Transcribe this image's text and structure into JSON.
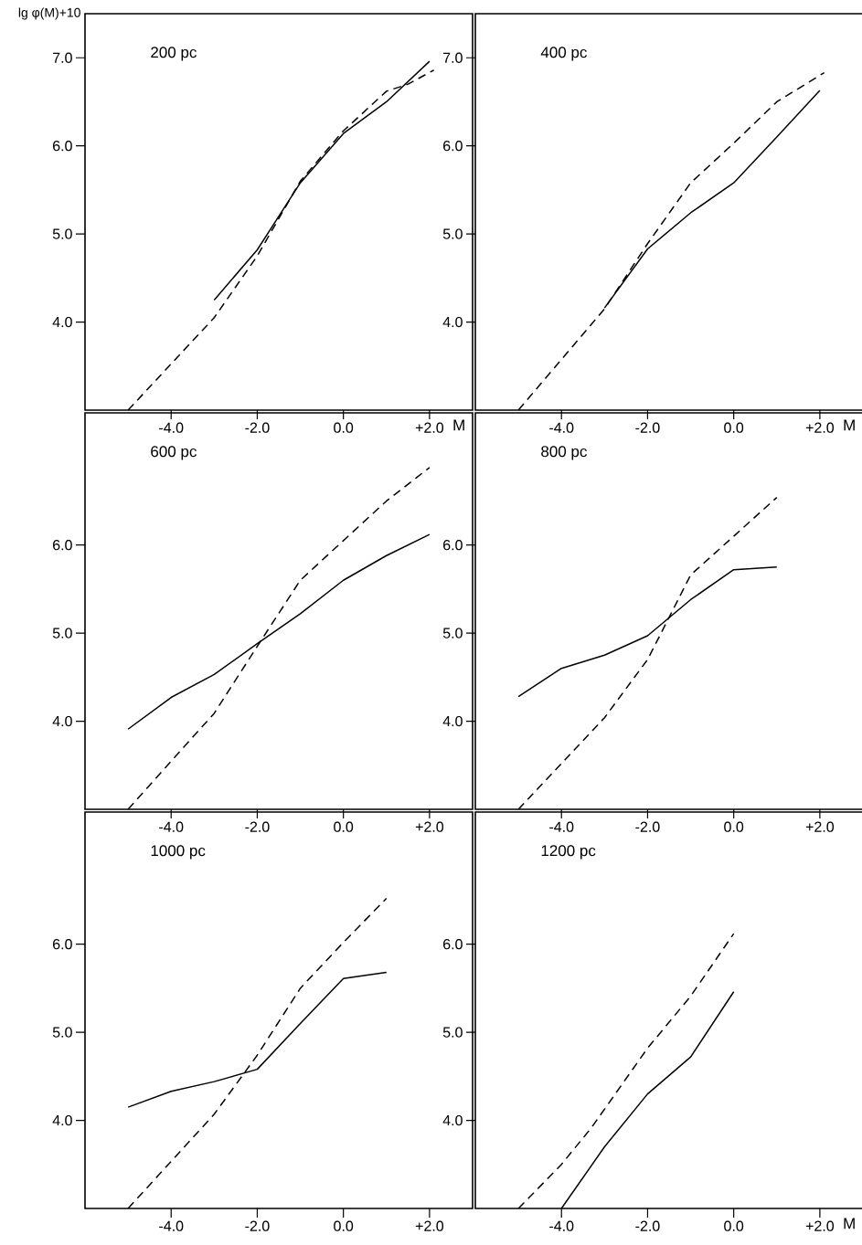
{
  "chart_data": [
    {
      "type": "line",
      "title": "200 pc",
      "xlabel": "M",
      "ylabel": "lg φ(M)+10",
      "xlim": [
        -6,
        3
      ],
      "ylim": [
        3,
        7.5
      ],
      "xticks": [
        {
          "value": -4,
          "label": "-4.0"
        },
        {
          "value": -2,
          "label": "-2.0"
        },
        {
          "value": 0,
          "label": "0.0"
        },
        {
          "value": 2,
          "label": "+2.0"
        }
      ],
      "yticks": [
        {
          "value": 4,
          "label": "4.0"
        },
        {
          "value": 5,
          "label": "5.0"
        },
        {
          "value": 6,
          "label": "6.0"
        },
        {
          "value": 7,
          "label": "7.0"
        }
      ],
      "series": [
        {
          "color": "#000000",
          "line_style": "solid",
          "x": [
            -3.0,
            -2.0,
            -1.0,
            0.0,
            1.0,
            2.0
          ],
          "values": [
            4.25,
            4.82,
            5.58,
            6.14,
            6.5,
            6.96
          ]
        },
        {
          "color": "#000000",
          "line_style": "dashed",
          "x": [
            -5.0,
            -3.0,
            -2.0,
            -1.0,
            0.0,
            1.0,
            1.5,
            2.1
          ],
          "values": [
            3.0,
            4.05,
            4.75,
            5.6,
            6.17,
            6.62,
            6.7,
            6.86
          ]
        }
      ]
    },
    {
      "type": "line",
      "title": "400 pc",
      "xlabel": "M",
      "xlim": [
        -6,
        3
      ],
      "ylim": [
        3,
        7.5
      ],
      "xticks": [
        {
          "value": -4,
          "label": "-4.0"
        },
        {
          "value": -2,
          "label": "-2.0"
        },
        {
          "value": 0,
          "label": "0.0"
        },
        {
          "value": 2,
          "label": "+2.0"
        }
      ],
      "yticks": [
        {
          "value": 4,
          "label": "4.0"
        },
        {
          "value": 5,
          "label": "5.0"
        },
        {
          "value": 6,
          "label": "6.0"
        },
        {
          "value": 7,
          "label": "7.0"
        }
      ],
      "series": [
        {
          "color": "#000000",
          "line_style": "solid",
          "x": [
            -3.0,
            -2.0,
            -1.0,
            0.0,
            1.0,
            2.0
          ],
          "values": [
            4.16,
            4.83,
            5.24,
            5.58,
            6.1,
            6.63
          ]
        },
        {
          "color": "#000000",
          "line_style": "dashed",
          "x": [
            -5.0,
            -3.0,
            -2.0,
            -1.0,
            0.0,
            1.0,
            2.1
          ],
          "values": [
            3.0,
            4.15,
            4.89,
            5.58,
            6.03,
            6.5,
            6.83
          ]
        }
      ]
    },
    {
      "type": "line",
      "title": "600 pc",
      "xlim": [
        -6,
        3
      ],
      "ylim": [
        3,
        7.5
      ],
      "xticks": [
        {
          "value": -4,
          "label": "-4.0"
        },
        {
          "value": -2,
          "label": "-2.0"
        },
        {
          "value": 0,
          "label": "0.0"
        },
        {
          "value": 2,
          "label": "+2.0"
        }
      ],
      "yticks": [
        {
          "value": 4,
          "label": "4.0"
        },
        {
          "value": 5,
          "label": "5.0"
        },
        {
          "value": 6,
          "label": "6.0"
        }
      ],
      "series": [
        {
          "color": "#000000",
          "line_style": "solid",
          "x": [
            -5.0,
            -4.0,
            -3.0,
            -2.0,
            -1.0,
            0.0,
            1.0,
            2.0
          ],
          "values": [
            3.91,
            4.27,
            4.53,
            4.88,
            5.22,
            5.6,
            5.88,
            6.12
          ]
        },
        {
          "color": "#000000",
          "line_style": "dashed",
          "x": [
            -5.0,
            -3.0,
            -2.0,
            -1.0,
            0.0,
            1.0,
            2.0
          ],
          "values": [
            3.0,
            4.09,
            4.85,
            5.6,
            6.05,
            6.5,
            6.88
          ]
        }
      ]
    },
    {
      "type": "line",
      "title": "800 pc",
      "xlim": [
        -6,
        3
      ],
      "ylim": [
        3,
        7.5
      ],
      "xticks": [
        {
          "value": -4,
          "label": "-4.0"
        },
        {
          "value": -2,
          "label": "-2.0"
        },
        {
          "value": 0,
          "label": "0.0"
        },
        {
          "value": 2,
          "label": "+2.0"
        }
      ],
      "yticks": [
        {
          "value": 4,
          "label": "4.0"
        },
        {
          "value": 5,
          "label": "5.0"
        },
        {
          "value": 6,
          "label": "6.0"
        }
      ],
      "series": [
        {
          "color": "#000000",
          "line_style": "solid",
          "x": [
            -5.0,
            -4.0,
            -3.0,
            -2.0,
            -1.0,
            0.0,
            1.0
          ],
          "values": [
            4.28,
            4.6,
            4.75,
            4.97,
            5.38,
            5.72,
            5.75
          ]
        },
        {
          "color": "#000000",
          "line_style": "dashed",
          "x": [
            -5.0,
            -3.0,
            -2.0,
            -1.0,
            0.0,
            1.0
          ],
          "values": [
            3.0,
            4.04,
            4.7,
            5.66,
            6.1,
            6.54
          ]
        }
      ]
    },
    {
      "type": "line",
      "title": "1000 pc",
      "xlim": [
        -6,
        3
      ],
      "ylim": [
        3,
        7.5
      ],
      "xticks": [
        {
          "value": -4,
          "label": "-4.0"
        },
        {
          "value": -2,
          "label": "-2.0"
        },
        {
          "value": 0,
          "label": "0.0"
        },
        {
          "value": 2,
          "label": "+2.0"
        }
      ],
      "yticks": [
        {
          "value": 4,
          "label": "4.0"
        },
        {
          "value": 5,
          "label": "5.0"
        },
        {
          "value": 6,
          "label": "6.0"
        }
      ],
      "series": [
        {
          "color": "#000000",
          "line_style": "solid",
          "x": [
            -5.0,
            -4.0,
            -3.0,
            -2.0,
            -1.0,
            0.0,
            1.0
          ],
          "values": [
            4.15,
            4.33,
            4.44,
            4.58,
            5.1,
            5.61,
            5.68
          ]
        },
        {
          "color": "#000000",
          "line_style": "dashed",
          "x": [
            -5.0,
            -3.0,
            -2.0,
            -1.0,
            0.0,
            1.0
          ],
          "values": [
            3.0,
            4.07,
            4.74,
            5.5,
            6.02,
            6.52
          ]
        }
      ]
    },
    {
      "type": "line",
      "title": "1200 pc",
      "xlabel": "M",
      "xlim": [
        -6,
        3
      ],
      "ylim": [
        3,
        7.5
      ],
      "xticks": [
        {
          "value": -4,
          "label": "-4.0"
        },
        {
          "value": -2,
          "label": "-2.0"
        },
        {
          "value": 0,
          "label": "0.0"
        },
        {
          "value": 2,
          "label": "+2.0"
        }
      ],
      "yticks": [
        {
          "value": 4,
          "label": "4.0"
        },
        {
          "value": 5,
          "label": "5.0"
        },
        {
          "value": 6,
          "label": "6.0"
        }
      ],
      "series": [
        {
          "color": "#000000",
          "line_style": "solid",
          "x": [
            -4.0,
            -3.0,
            -2.0,
            -1.0,
            0.0
          ],
          "values": [
            3.0,
            3.7,
            4.3,
            4.72,
            5.46
          ]
        },
        {
          "color": "#000000",
          "line_style": "dashed",
          "x": [
            -5.0,
            -4.0,
            -3.3,
            -2.0,
            -1.0,
            0.0
          ],
          "values": [
            3.0,
            3.5,
            3.92,
            4.82,
            5.41,
            6.12
          ]
        }
      ]
    }
  ]
}
